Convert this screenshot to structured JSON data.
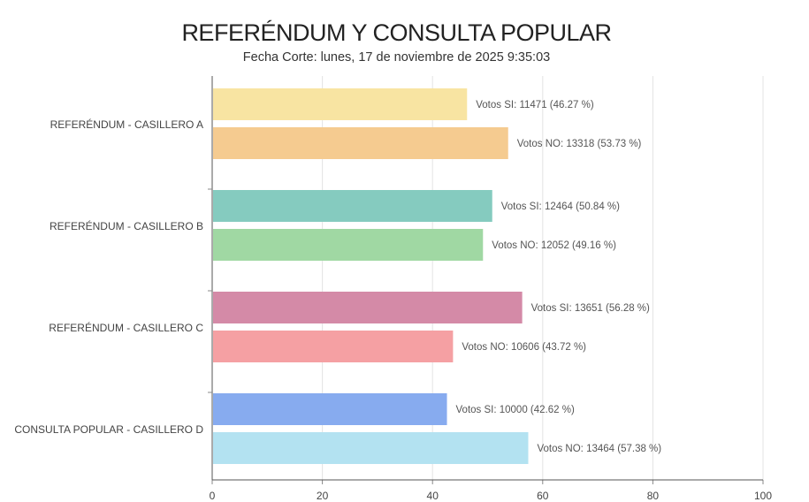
{
  "chart_data": {
    "type": "bar",
    "orientation": "horizontal",
    "title": "REFERÉNDUM Y CONSULTA POPULAR",
    "subtitle": "Fecha Corte: lunes, 17 de noviembre de 2025 9:35:03",
    "xlim": [
      0,
      100
    ],
    "xticks": [
      0,
      20,
      40,
      60,
      80,
      100
    ],
    "grid": true,
    "categories": [
      "REFERÉNDUM - CASILLERO A",
      "REFERÉNDUM - CASILLERO B",
      "REFERÉNDUM - CASILLERO C",
      "CONSULTA POPULAR - CASILLERO D"
    ],
    "bars": [
      {
        "category": 0,
        "name": "Votos SI",
        "value": 46.27,
        "label": "Votos SI: 11471 (46.27 %)",
        "color": "#f8e4a2"
      },
      {
        "category": 0,
        "name": "Votos NO",
        "value": 53.73,
        "label": "Votos NO: 13318 (53.73 %)",
        "color": "#f5cb90"
      },
      {
        "category": 1,
        "name": "Votos SI",
        "value": 50.84,
        "label": "Votos SI: 12464 (50.84 %)",
        "color": "#85cbbf"
      },
      {
        "category": 1,
        "name": "Votos NO",
        "value": 49.16,
        "label": "Votos NO: 12052 (49.16 %)",
        "color": "#a0d8a3"
      },
      {
        "category": 2,
        "name": "Votos SI",
        "value": 56.28,
        "label": "Votos SI: 13651 (56.28 %)",
        "color": "#d48aa7"
      },
      {
        "category": 2,
        "name": "Votos NO",
        "value": 43.72,
        "label": "Votos NO: 10606 (43.72 %)",
        "color": "#f5a0a3"
      },
      {
        "category": 3,
        "name": "Votos SI",
        "value": 42.62,
        "label": "Votos SI: 10000 (42.62 %)",
        "color": "#87abef"
      },
      {
        "category": 3,
        "name": "Votos NO",
        "value": 57.38,
        "label": "Votos NO: 13464 (57.38 %)",
        "color": "#b3e2f1"
      }
    ]
  }
}
